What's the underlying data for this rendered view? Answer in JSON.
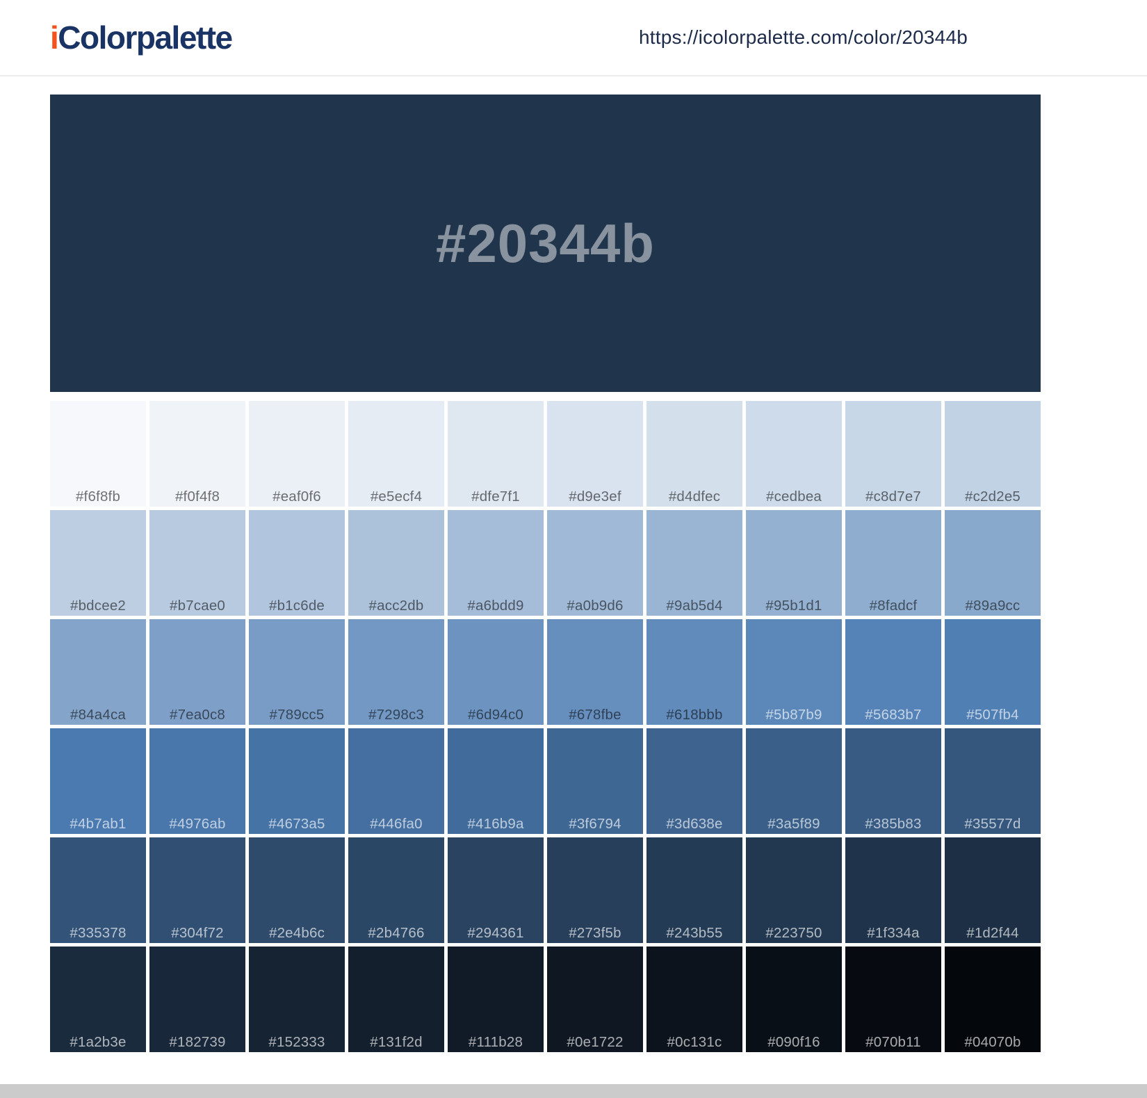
{
  "header": {
    "logo_prefix": "i",
    "logo_rest": "Colorpalette",
    "url": "https://icolorpalette.com/color/20344b"
  },
  "hero": {
    "hex": "#20344b",
    "background": "#20344b"
  },
  "palette": {
    "shades": [
      "#f6f8fb",
      "#f0f4f8",
      "#eaf0f6",
      "#e5ecf4",
      "#dfe7f1",
      "#d9e3ef",
      "#d4dfec",
      "#cedbea",
      "#c8d7e7",
      "#c2d2e5",
      "#bdcee2",
      "#b7cae0",
      "#b1c6de",
      "#acc2db",
      "#a6bdd9",
      "#a0b9d6",
      "#9ab5d4",
      "#95b1d1",
      "#8fadcf",
      "#89a9cc",
      "#84a4ca",
      "#7ea0c8",
      "#789cc5",
      "#7298c3",
      "#6d94c0",
      "#678fbe",
      "#618bbb",
      "#5b87b9",
      "#5683b7",
      "#507fb4",
      "#4b7ab1",
      "#4976ab",
      "#4673a5",
      "#446fa0",
      "#416b9a",
      "#3f6794",
      "#3d638e",
      "#3a5f89",
      "#385b83",
      "#35577d",
      "#335378",
      "#304f72",
      "#2e4b6c",
      "#2b4766",
      "#294361",
      "#273f5b",
      "#243b55",
      "#223750",
      "#1f334a",
      "#1d2f44",
      "#1a2b3e",
      "#182739",
      "#152333",
      "#131f2d",
      "#111b28",
      "#0e1722",
      "#0c131c",
      "#090f16",
      "#070b11",
      "#04070b"
    ]
  },
  "style": {
    "accent_orange": "#f4511e",
    "brand_navy": "#1a3365",
    "url_color": "#1c2b4a",
    "hero_text_color": "rgba(255,255,255,0.47)",
    "label_dark": "rgba(0,0,0,0.55)",
    "label_light": "rgba(255,255,255,0.65)",
    "luma_threshold": 130,
    "bottom_bar_gray": "#cbcbcb"
  }
}
